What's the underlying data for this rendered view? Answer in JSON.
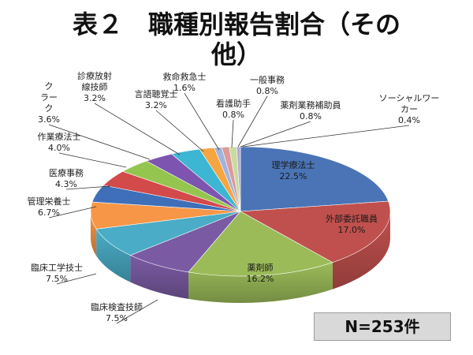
{
  "title": {
    "line1": "表２　職種別報告割合（その",
    "line2": "他）"
  },
  "n_label": "N=253件",
  "chart_data": {
    "type": "pie",
    "title": "表２　職種別報告割合（その他）",
    "total_label": "N=253件",
    "slices": [
      {
        "name": "理学療法士",
        "value": 22.5,
        "label": "22.5%",
        "color": "#4a74b6"
      },
      {
        "name": "外部委託職員",
        "value": 17.0,
        "label": "17.0%",
        "color": "#c0504d"
      },
      {
        "name": "薬剤師",
        "value": 16.2,
        "label": "16.2%",
        "color": "#9bbb59"
      },
      {
        "name": "臨床検査技師",
        "value": 7.5,
        "label": "7.5%",
        "color": "#7a5ba3"
      },
      {
        "name": "臨床工学技士",
        "value": 7.5,
        "label": "7.5%",
        "color": "#4aacc6"
      },
      {
        "name": "管理栄養士",
        "value": 6.7,
        "label": "6.7%",
        "color": "#f79646"
      },
      {
        "name": "医療事務",
        "value": 4.3,
        "label": "4.3%",
        "color": "#3f6fb8"
      },
      {
        "name": "作業療法士",
        "value": 4.0,
        "label": "4.0%",
        "color": "#d24a4a"
      },
      {
        "name": "クラーク",
        "value": 3.6,
        "label": "3.6%",
        "color": "#94c64f"
      },
      {
        "name": "診療放射線技師",
        "value": 3.2,
        "label": "3.2%",
        "color": "#7d55b0"
      },
      {
        "name": "言語聴覚士",
        "value": 3.2,
        "label": "3.2%",
        "color": "#3cb6d2"
      },
      {
        "name": "救命救急士",
        "value": 1.6,
        "label": "1.6%",
        "color": "#f7a540"
      },
      {
        "name": "看護助手",
        "value": 0.8,
        "label": "0.8%",
        "color": "#9fb4df"
      },
      {
        "name": "一般事務",
        "value": 0.8,
        "label": "0.8%",
        "color": "#dd9a97"
      },
      {
        "name": "薬剤業務補助員",
        "value": 0.8,
        "label": "0.8%",
        "color": "#c6dca0"
      },
      {
        "name": "ソーシャルワーカー",
        "value": 0.4,
        "label": "0.4%",
        "color": "#b8a7d2"
      }
    ]
  }
}
